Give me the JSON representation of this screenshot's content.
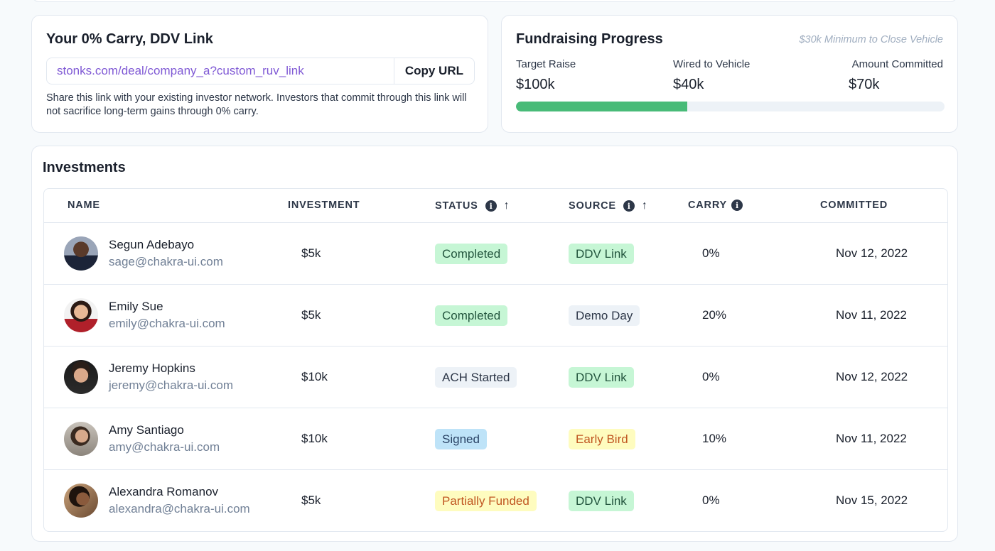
{
  "carry": {
    "title": "Your 0% Carry, DDV Link",
    "link_url": "stonks.com/deal/company_a?custom_ruv_link",
    "copy_label": "Copy URL",
    "description": "Share this link with your existing investor network. Investors that commit through this link will not sacrifice long-term gains through 0% carry."
  },
  "fundraising": {
    "title": "Fundraising Progress",
    "note": "$30k Minimum to Close Vehicle",
    "target_label": "Target Raise",
    "target_value": "$100k",
    "wired_label": "Wired to Vehicle",
    "wired_value": "$40k",
    "committed_label": "Amount Committed",
    "committed_value": "$70k",
    "progress_fraction": 0.4,
    "progress_color": "#48bb78"
  },
  "investments": {
    "title": "Investments",
    "columns": {
      "name": "NAME",
      "investment": "INVESTMENT",
      "status": "STATUS",
      "source": "SOURCE",
      "carry": "CARRY",
      "committed": "COMMITTED"
    },
    "rows": [
      {
        "name": "Segun Adebayo",
        "email": "sage@chakra-ui.com",
        "investment": "$5k",
        "status": "Completed",
        "status_color": "green",
        "source": "DDV Link",
        "source_color": "green",
        "carry": "0%",
        "committed": "Nov 12, 2022",
        "avatar": "avatar-segun"
      },
      {
        "name": "Emily Sue",
        "email": "emily@chakra-ui.com",
        "investment": "$5k",
        "status": "Completed",
        "status_color": "green",
        "source": "Demo Day",
        "source_color": "gray",
        "carry": "20%",
        "committed": "Nov 11, 2022",
        "avatar": "avatar-emily"
      },
      {
        "name": "Jeremy Hopkins",
        "email": "jeremy@chakra-ui.com",
        "investment": "$10k",
        "status": "ACH Started",
        "status_color": "gray",
        "source": "DDV Link",
        "source_color": "green",
        "carry": "0%",
        "committed": "Nov 12, 2022",
        "avatar": "avatar-jeremy"
      },
      {
        "name": "Amy Santiago",
        "email": "amy@chakra-ui.com",
        "investment": "$10k",
        "status": "Signed",
        "status_color": "blue",
        "source": "Early Bird",
        "source_color": "yellow",
        "carry": "10%",
        "committed": "Nov 11, 2022",
        "avatar": "avatar-amy"
      },
      {
        "name": "Alexandra Romanov",
        "email": "alexandra@chakra-ui.com",
        "investment": "$5k",
        "status": "Partially Funded",
        "status_color": "yellow",
        "source": "DDV Link",
        "source_color": "green",
        "carry": "0%",
        "committed": "Nov 15, 2022",
        "avatar": "avatar-alexandra"
      }
    ]
  },
  "badge_colors": {
    "green": {
      "bg": "#c6f6d5",
      "fg": "#22543d"
    },
    "gray": {
      "bg": "#edf2f7",
      "fg": "#2d3748"
    },
    "blue": {
      "bg": "#bee3f8",
      "fg": "#2a4365"
    },
    "yellow": {
      "bg": "#fefcbf",
      "fg": "#c05621"
    }
  }
}
